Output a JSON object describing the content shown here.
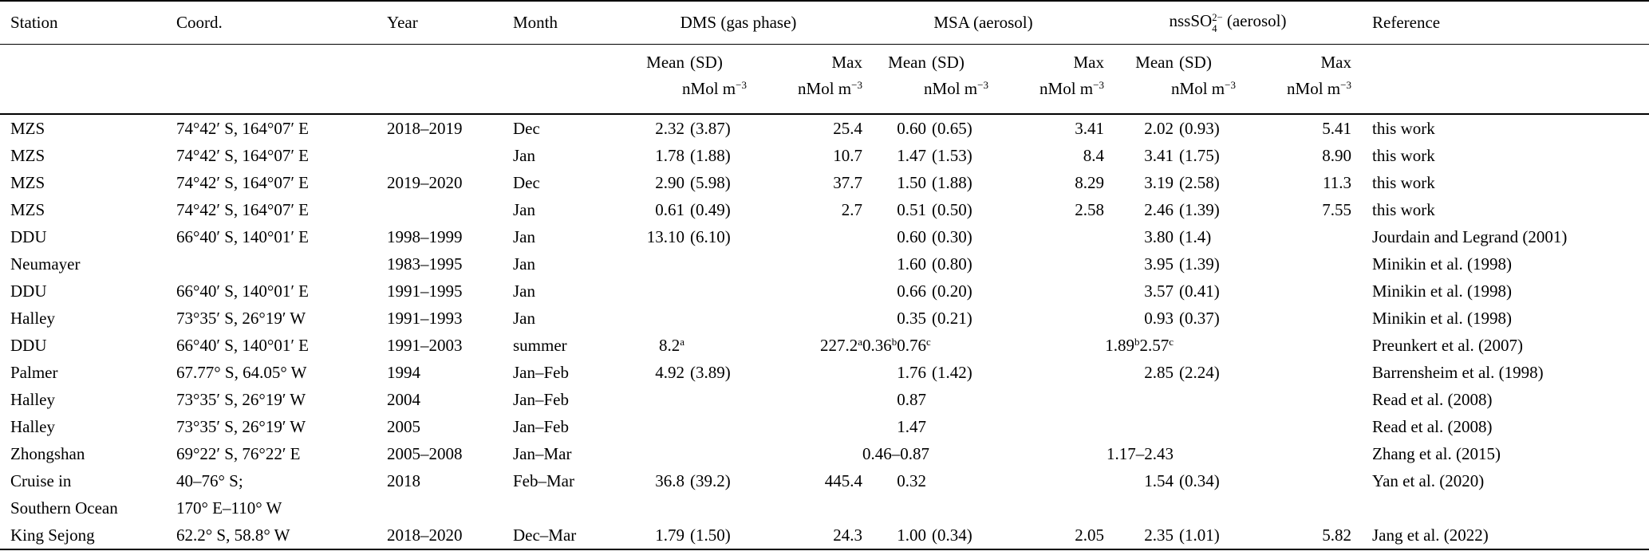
{
  "page": {
    "background": "#ffffff",
    "text_color": "#000000"
  },
  "table": {
    "header": {
      "station": "Station",
      "coord": "Coord.",
      "year": "Year",
      "month": "Month",
      "dms_group": "DMS (gas phase)",
      "msa_group": "MSA (aerosol)",
      "nss_group": "nssSO_{4}^{2−} (aerosol)",
      "reference": "Reference",
      "sub": {
        "dms_mean": "Mean (SD)",
        "dms_max": "Max",
        "msa_mean": "Mean (SD)",
        "msa_max": "Max",
        "nss_mean": "Mean (SD)",
        "nss_max": "Max",
        "unit": "nMol m^{−3}"
      }
    },
    "rows": [
      [
        "MZS",
        "74°42′ S, 164°07′ E",
        "2018–2019",
        "Dec",
        "2.32 (3.87)",
        "25.4",
        "0.60 (0.65)",
        "3.41",
        "2.02 (0.93)",
        "5.41",
        "this work"
      ],
      [
        "MZS",
        "74°42′ S, 164°07′ E",
        "",
        "Jan",
        "1.78 (1.88)",
        "10.7",
        "1.47 (1.53)",
        "8.4",
        "3.41 (1.75)",
        "8.90",
        "this work"
      ],
      [
        "MZS",
        "74°42′ S, 164°07′ E",
        "2019–2020",
        "Dec",
        "2.90 (5.98)",
        "37.7",
        "1.50 (1.88)",
        "8.29",
        "3.19 (2.58)",
        "11.3",
        "this work"
      ],
      [
        "MZS",
        "74°42′ S, 164°07′ E",
        "",
        "Jan",
        "0.61 (0.49)",
        "2.7",
        "0.51 (0.50)",
        "2.58",
        "2.46 (1.39)",
        "7.55",
        "this work"
      ],
      [
        "DDU",
        "66°40′ S, 140°01′ E",
        "1998–1999",
        "Jan",
        "13.10 (6.10)",
        "",
        "0.60 (0.30)",
        "",
        "3.80 (1.4)",
        "",
        "Jourdain and Legrand (2001)"
      ],
      [
        "Neumayer",
        "",
        "1983–1995",
        "Jan",
        "",
        "",
        "1.60 (0.80)",
        "",
        "3.95 (1.39)",
        "",
        "Minikin et al. (1998)"
      ],
      [
        "DDU",
        "66°40′ S, 140°01′ E",
        "1991–1995",
        "Jan",
        "",
        "",
        "0.66 (0.20)",
        "",
        "3.57 (0.41)",
        "",
        "Minikin et al. (1998)"
      ],
      [
        "Halley",
        "73°35′ S, 26°19′ W",
        "1991–1993",
        "Jan",
        "",
        "",
        "0.35 (0.21)",
        "",
        "0.93 (0.37)",
        "",
        "Minikin et al. (1998)"
      ],
      [
        "DDU",
        "66°40′ S, 140°01′ E",
        "1991–2003",
        "summer",
        "8.2^{a}",
        "227.2^{a}",
        "0.36^{b}0.76^{c}",
        "",
        "1.89^{b}2.57^{c}",
        "",
        "Preunkert et al. (2007)"
      ],
      [
        "Palmer",
        "67.77° S, 64.05° W",
        "1994",
        "Jan–Feb",
        "4.92 (3.89)",
        "",
        "1.76 (1.42)",
        "",
        "2.85 (2.24)",
        "",
        "Barrensheim et al. (1998)"
      ],
      [
        "Halley",
        "73°35′ S, 26°19′ W",
        "2004",
        "Jan–Feb",
        "",
        "",
        "0.87",
        "",
        "",
        "",
        "Read et al. (2008)"
      ],
      [
        "Halley",
        "73°35′ S, 26°19′ W",
        "2005",
        "Jan–Feb",
        "",
        "",
        "1.47",
        "",
        "",
        "",
        "Read et al. (2008)"
      ],
      [
        "Zhongshan",
        "69°22′ S, 76°22′ E",
        "2005–2008",
        "Jan–Mar",
        "",
        "",
        "0.46–0.87",
        "",
        "1.17–2.43",
        "",
        "Zhang et al. (2015)"
      ],
      [
        "Cruise in",
        "40–76° S;",
        "2018",
        "Feb–Mar",
        "36.8 (39.2)",
        "445.4",
        "0.32",
        "",
        "1.54 (0.34)",
        "",
        "Yan et al. (2020)"
      ],
      [
        "Southern Ocean",
        "170° E–110° W",
        "",
        "",
        "",
        "",
        "",
        "",
        "",
        "",
        ""
      ],
      [
        "King Sejong",
        "62.2° S, 58.8° W",
        "2018–2020",
        "Dec–Mar",
        "1.79 (1.50)",
        "24.3",
        "1.00 (0.34)",
        "2.05",
        "2.35 (1.01)",
        "5.82",
        "Jang et al. (2022)"
      ]
    ]
  }
}
